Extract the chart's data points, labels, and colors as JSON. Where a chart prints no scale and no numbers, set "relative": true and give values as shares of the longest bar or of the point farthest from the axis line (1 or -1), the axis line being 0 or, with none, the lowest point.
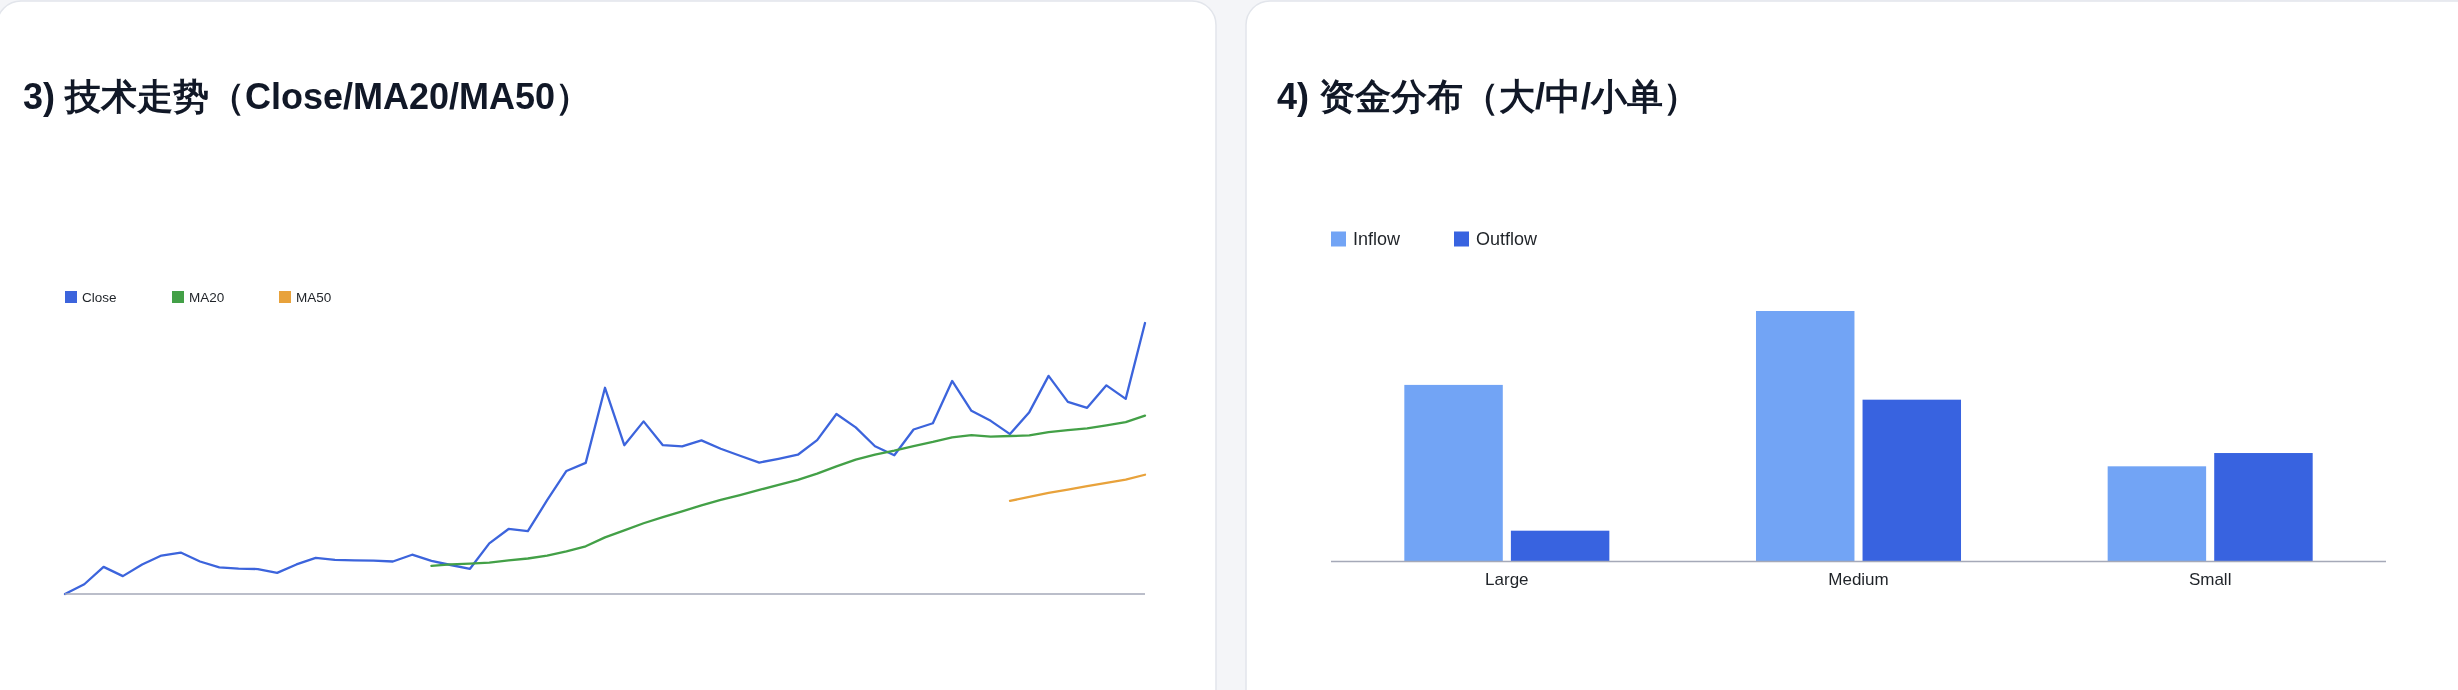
{
  "chart_data": [
    {
      "type": "line",
      "title": "3) 技术走势（Close/MA20/MA50）",
      "relative": true,
      "legend": "top left",
      "categories": [
        null,
        null,
        null,
        null,
        null,
        null,
        null,
        null,
        null,
        null,
        null,
        null,
        null,
        null,
        null,
        null,
        null,
        null,
        null,
        null,
        null,
        null,
        null,
        null,
        null,
        null,
        null,
        null,
        null,
        null,
        null,
        null,
        null,
        null,
        null,
        null,
        null,
        null,
        null,
        null,
        null,
        null,
        null,
        null,
        null,
        null,
        null,
        null,
        null,
        null,
        null,
        null,
        null,
        null,
        null,
        null,
        null
      ],
      "series": [
        {
          "name": "Close",
          "color": "#3c64dc",
          "values": [
            0.0,
            0.036,
            0.1,
            0.066,
            0.109,
            0.142,
            0.153,
            0.12,
            0.098,
            0.094,
            0.092,
            0.078,
            0.109,
            0.133,
            0.126,
            0.124,
            0.123,
            0.12,
            0.145,
            0.122,
            0.107,
            0.093,
            0.187,
            0.24,
            0.232,
            0.346,
            0.454,
            0.484,
            0.761,
            0.549,
            0.637,
            0.549,
            0.545,
            0.567,
            0.536,
            0.51,
            0.485,
            0.499,
            0.514,
            0.568,
            0.664,
            0.615,
            0.545,
            0.512,
            0.607,
            0.63,
            0.786,
            0.676,
            0.639,
            0.59,
            0.671,
            0.805,
            0.709,
            0.687,
            0.77,
            0.72,
            1.0
          ]
        },
        {
          "name": "MA20",
          "color": "#43a047",
          "values": [
            null,
            null,
            null,
            null,
            null,
            null,
            null,
            null,
            null,
            null,
            null,
            null,
            null,
            null,
            null,
            null,
            null,
            null,
            null,
            0.104,
            0.109,
            0.112,
            0.116,
            0.124,
            0.131,
            0.142,
            0.157,
            0.176,
            0.209,
            0.235,
            0.261,
            0.284,
            0.305,
            0.327,
            0.347,
            0.365,
            0.384,
            0.403,
            0.421,
            0.444,
            0.471,
            0.496,
            0.514,
            0.529,
            0.546,
            0.561,
            0.578,
            0.586,
            0.581,
            0.583,
            0.585,
            0.597,
            0.605,
            0.611,
            0.622,
            0.634,
            0.658
          ]
        },
        {
          "name": "MA50",
          "color": "#e8a23b",
          "values": [
            null,
            null,
            null,
            null,
            null,
            null,
            null,
            null,
            null,
            null,
            null,
            null,
            null,
            null,
            null,
            null,
            null,
            null,
            null,
            null,
            null,
            null,
            null,
            null,
            null,
            null,
            null,
            null,
            null,
            null,
            null,
            null,
            null,
            null,
            null,
            null,
            null,
            null,
            null,
            null,
            null,
            null,
            null,
            null,
            null,
            null,
            null,
            null,
            null,
            0.344,
            0.358,
            0.373,
            0.385,
            0.398,
            0.41,
            0.422,
            0.44
          ]
        }
      ]
    },
    {
      "type": "bar",
      "title": "4) 资金分布（大/中/小单）",
      "relative": true,
      "legend": "top left",
      "categories": [
        "Large",
        "Medium",
        "Small"
      ],
      "series": [
        {
          "name": "Inflow",
          "color": "#72a4f5",
          "values": [
            0.705,
            1.0,
            0.38
          ]
        },
        {
          "name": "Outflow",
          "color": "#3863e0",
          "values": [
            0.123,
            0.646,
            0.433
          ]
        }
      ]
    }
  ]
}
